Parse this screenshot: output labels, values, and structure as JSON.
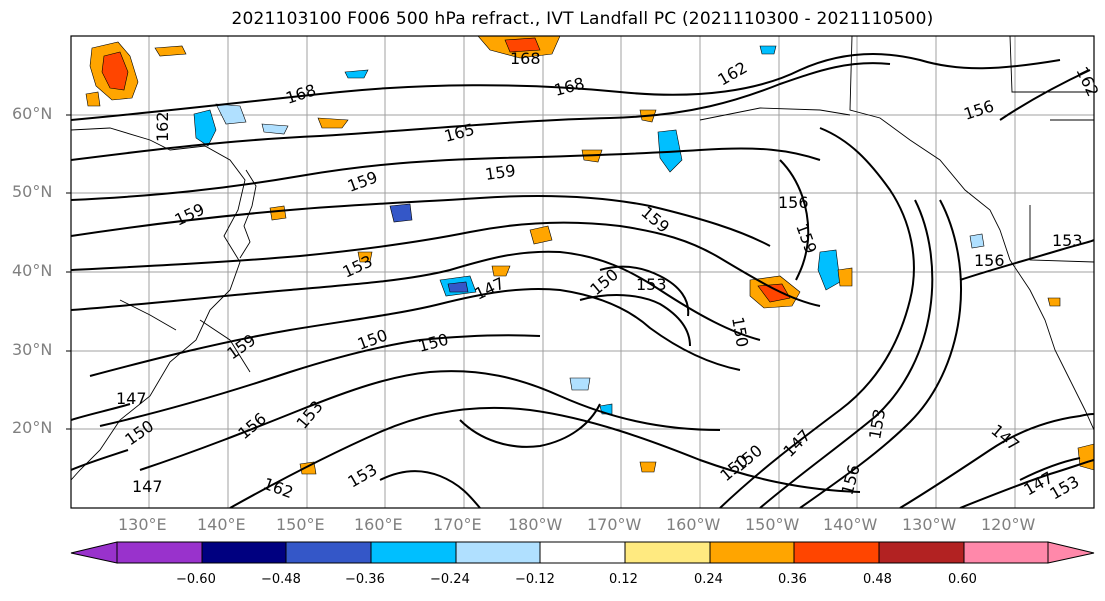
{
  "title": "2021103100 F006 500 hPa refract., IVT Landfall PC (2021110300 - 2021110500)",
  "lat_ticks": [
    "60°N",
    "50°N",
    "40°N",
    "30°N",
    "20°N"
  ],
  "lon_ticks": [
    "130°E",
    "140°E",
    "150°E",
    "160°E",
    "170°E",
    "180°W",
    "170°W",
    "160°W",
    "150°W",
    "140°W",
    "130°W",
    "120°W"
  ],
  "contour_labels": [
    "168",
    "168",
    "162",
    "168",
    "162",
    "156",
    "162",
    "165",
    "159",
    "159",
    "159",
    "156",
    "153",
    "159",
    "153",
    "147",
    "150",
    "150",
    "159",
    "153",
    "150",
    "150",
    "159",
    "147",
    "150",
    "147",
    "156",
    "153",
    "150",
    "147",
    "156",
    "147",
    "162",
    "153",
    "147",
    "153",
    "150",
    "153",
    "156"
  ],
  "colorbar": {
    "ticks": [
      "−0.60",
      "−0.48",
      "−0.36",
      "−0.24",
      "−0.12",
      "0.12",
      "0.24",
      "0.36",
      "0.48",
      "0.60"
    ],
    "colors": [
      "#9932cc",
      "#000080",
      "#3457c8",
      "#00bfff",
      "#b0e0ff",
      "#ffffff",
      "#ffea80",
      "#ffa500",
      "#ff4500",
      "#b22222",
      "#ff88aa"
    ]
  },
  "colors": {
    "contour": "#000000",
    "grid": "#a0a0a0",
    "coast": "#000000",
    "tick_text": "#808080"
  }
}
